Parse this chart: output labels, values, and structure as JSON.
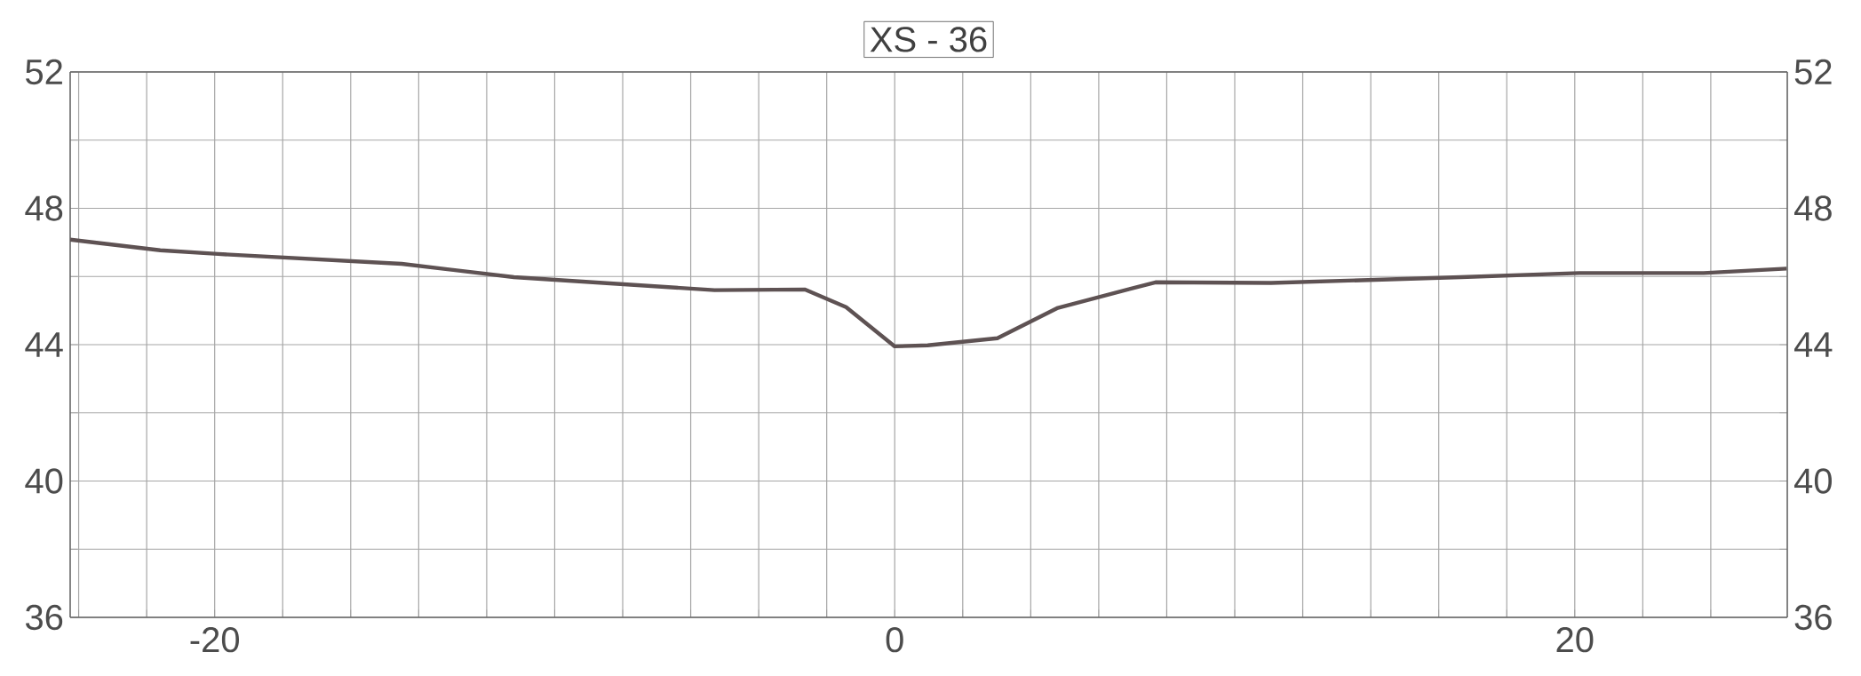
{
  "chart_data": {
    "type": "line",
    "title": "XS - 36",
    "x": [
      -24.25,
      -21.6,
      -19.9,
      -14.5,
      -11.2,
      -5.3,
      -2.65,
      -1.43,
      0,
      0.97,
      3.02,
      4.8,
      7.67,
      11.07,
      16.65,
      20.13,
      23.79,
      26.23
    ],
    "values": [
      47.08,
      46.77,
      46.66,
      46.37,
      45.98,
      45.6,
      45.62,
      45.1,
      43.95,
      43.98,
      44.19,
      45.08,
      45.83,
      45.81,
      45.98,
      46.1,
      46.1,
      46.23
    ],
    "color": "#5e5253",
    "xlim": [
      -24.25,
      26.25
    ],
    "xticks": [
      {
        "value": -24,
        "label": null
      },
      {
        "value": -22,
        "label": null
      },
      -20,
      {
        "value": -18,
        "label": null
      },
      {
        "value": -16,
        "label": null
      },
      {
        "value": -14,
        "label": null
      },
      {
        "value": -12,
        "label": null
      },
      {
        "value": -10,
        "label": null
      },
      {
        "value": -8,
        "label": null
      },
      {
        "value": -6,
        "label": null
      },
      {
        "value": -4,
        "label": null
      },
      {
        "value": -2,
        "label": null
      },
      0,
      {
        "value": 2,
        "label": null
      },
      {
        "value": 4,
        "label": null
      },
      {
        "value": 6,
        "label": null
      },
      {
        "value": 8,
        "label": null
      },
      {
        "value": 10,
        "label": null
      },
      {
        "value": 12,
        "label": null
      },
      {
        "value": 14,
        "label": null
      },
      {
        "value": 16,
        "label": null
      },
      {
        "value": 18,
        "label": null
      },
      20,
      {
        "value": 22,
        "label": null
      },
      {
        "value": 24,
        "label": null
      }
    ],
    "ylim": [
      36,
      52
    ],
    "yticks": [
      36,
      {
        "value": 38,
        "label": null
      },
      40,
      {
        "value": 42,
        "label": null
      },
      44,
      {
        "value": 46,
        "label": null
      },
      48,
      {
        "value": 50,
        "label": null
      },
      52
    ],
    "y2lim": [
      36,
      52
    ],
    "y2ticks": [
      36,
      {
        "value": 38,
        "label": null
      },
      40,
      {
        "value": 42,
        "label": null
      },
      44,
      {
        "value": 46,
        "label": null
      },
      48,
      {
        "value": 50,
        "label": null
      },
      52
    ],
    "grid": true
  }
}
